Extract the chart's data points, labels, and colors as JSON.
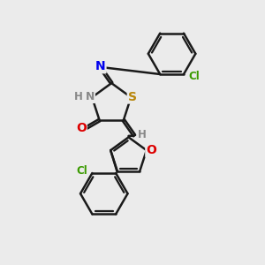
{
  "background_color": "#ebebeb",
  "bond_color": "#1a1a1a",
  "bond_width": 1.8,
  "atoms": {
    "N_blue": {
      "color": "#0000ee"
    },
    "S_yellow": {
      "color": "#b8860b"
    },
    "O_red": {
      "color": "#dd0000"
    },
    "Cl_green": {
      "color": "#3a9a00"
    },
    "H_gray": {
      "color": "#888888"
    },
    "N_gray": {
      "color": "#888888"
    }
  },
  "figsize": [
    3.0,
    3.0
  ],
  "dpi": 100,
  "xlim": [
    0,
    10
  ],
  "ylim": [
    0,
    10
  ]
}
